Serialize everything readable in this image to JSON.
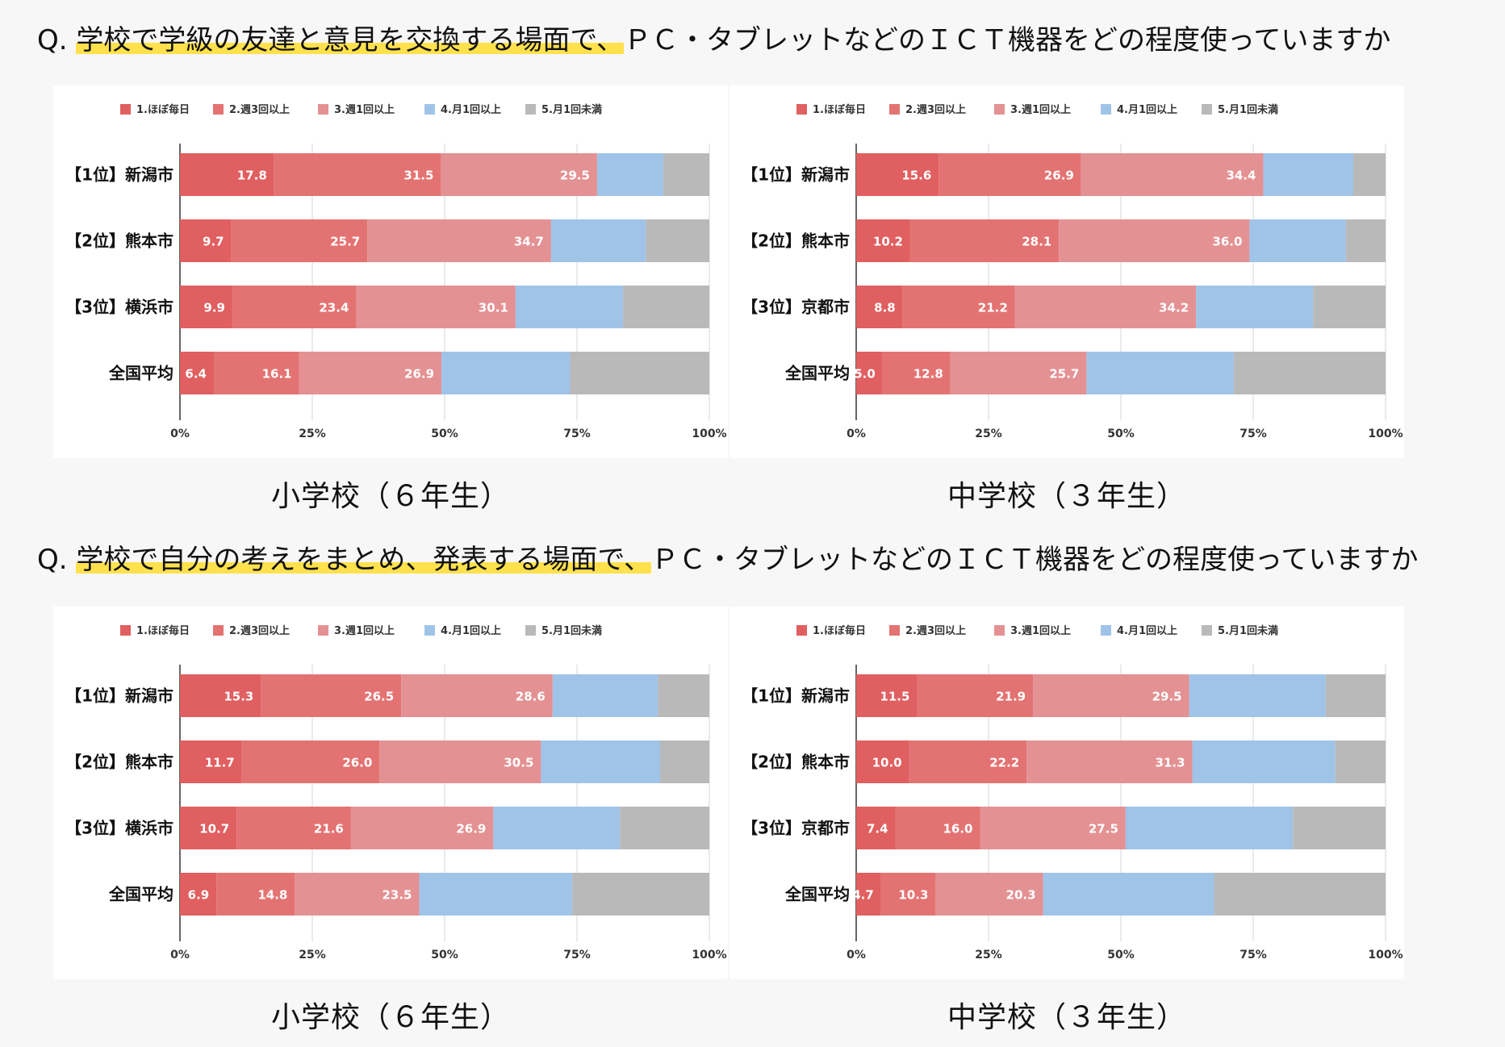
{
  "legend": [
    {
      "label": "1.ほぼ毎日",
      "color": "#e05f60"
    },
    {
      "label": "2.週3回以上",
      "color": "#e37372"
    },
    {
      "label": "3.週1回以上",
      "color": "#e49193"
    },
    {
      "label": "4.月1回以上",
      "color": "#a0c4e8"
    },
    {
      "label": "5.月1回未満",
      "color": "#b9b9b9"
    }
  ],
  "questions": [
    {
      "prefix": "Q. ",
      "highlight": "学校で学級の友達と意見を交換する場面で、",
      "rest": "ＰＣ・タブレットなどのＩＣＴ機器をどの程度使っていますか"
    },
    {
      "prefix": "Q. ",
      "highlight": "学校で自分の考えをまとめ、発表する場面で、",
      "rest": "ＰＣ・タブレットなどのＩＣＴ機器をどの程度使っていますか"
    }
  ],
  "chart_data": [
    {
      "type": "bar",
      "orientation": "horizontal",
      "stacked": "percent",
      "caption": "小学校（６年生）",
      "question_index": 0,
      "categories": [
        "【1位】新潟市",
        "【2位】熊本市",
        "【3位】横浜市",
        "全国平均"
      ],
      "series": [
        {
          "name": "1.ほぼ毎日",
          "values": [
            17.8,
            9.7,
            9.9,
            6.4
          ]
        },
        {
          "name": "2.週3回以上",
          "values": [
            31.5,
            25.7,
            23.4,
            16.1
          ]
        },
        {
          "name": "3.週1回以上",
          "values": [
            29.5,
            34.7,
            30.1,
            26.9
          ]
        },
        {
          "name": "4.月1回以上",
          "values": [
            12.5,
            17.9,
            20.3,
            24.3
          ]
        },
        {
          "name": "5.月1回未満",
          "values": [
            8.7,
            12.0,
            16.3,
            26.3
          ]
        }
      ],
      "xlim": [
        0,
        100
      ],
      "xticks": [
        "0%",
        "25%",
        "50%",
        "75%",
        "100%"
      ],
      "labeled_series": 3
    },
    {
      "type": "bar",
      "orientation": "horizontal",
      "stacked": "percent",
      "caption": "中学校（３年生）",
      "question_index": 0,
      "categories": [
        "【1位】新潟市",
        "【2位】熊本市",
        "【3位】京都市",
        "全国平均"
      ],
      "series": [
        {
          "name": "1.ほぼ毎日",
          "values": [
            15.6,
            10.2,
            8.8,
            5.0
          ]
        },
        {
          "name": "2.週3回以上",
          "values": [
            26.9,
            28.1,
            21.2,
            12.8
          ]
        },
        {
          "name": "3.週1回以上",
          "values": [
            34.4,
            36.0,
            34.2,
            25.7
          ]
        },
        {
          "name": "4.月1回以上",
          "values": [
            17.0,
            18.2,
            22.1,
            27.8
          ]
        },
        {
          "name": "5.月1回未満",
          "values": [
            6.1,
            7.5,
            13.7,
            28.7
          ]
        }
      ],
      "xlim": [
        0,
        100
      ],
      "xticks": [
        "0%",
        "25%",
        "50%",
        "75%",
        "100%"
      ],
      "labeled_series": 3
    },
    {
      "type": "bar",
      "orientation": "horizontal",
      "stacked": "percent",
      "caption": "小学校（６年生）",
      "question_index": 1,
      "categories": [
        "【1位】新潟市",
        "【2位】熊本市",
        "【3位】横浜市",
        "全国平均"
      ],
      "series": [
        {
          "name": "1.ほぼ毎日",
          "values": [
            15.3,
            11.7,
            10.7,
            6.9
          ]
        },
        {
          "name": "2.週3回以上",
          "values": [
            26.5,
            26.0,
            21.6,
            14.8
          ]
        },
        {
          "name": "3.週1回以上",
          "values": [
            28.6,
            30.5,
            26.9,
            23.5
          ]
        },
        {
          "name": "4.月1回以上",
          "values": [
            19.9,
            22.5,
            23.9,
            28.9
          ]
        },
        {
          "name": "5.月1回未満",
          "values": [
            9.7,
            9.3,
            16.9,
            25.9
          ]
        }
      ],
      "xlim": [
        0,
        100
      ],
      "xticks": [
        "0%",
        "25%",
        "50%",
        "75%",
        "100%"
      ],
      "labeled_series": 3
    },
    {
      "type": "bar",
      "orientation": "horizontal",
      "stacked": "percent",
      "caption": "中学校（３年生）",
      "question_index": 1,
      "categories": [
        "【1位】新潟市",
        "【2位】熊本市",
        "【3位】京都市",
        "全国平均"
      ],
      "series": [
        {
          "name": "1.ほぼ毎日",
          "values": [
            11.5,
            10.0,
            7.4,
            4.7
          ]
        },
        {
          "name": "2.週3回以上",
          "values": [
            21.9,
            22.2,
            16.0,
            10.3
          ]
        },
        {
          "name": "3.週1回以上",
          "values": [
            29.5,
            31.3,
            27.5,
            20.3
          ]
        },
        {
          "name": "4.月1回以上",
          "values": [
            25.8,
            27.0,
            31.6,
            32.3
          ]
        },
        {
          "name": "5.月1回未満",
          "values": [
            11.3,
            9.5,
            17.5,
            32.4
          ]
        }
      ],
      "xlim": [
        0,
        100
      ],
      "xticks": [
        "0%",
        "25%",
        "50%",
        "75%",
        "100%"
      ],
      "labeled_series": 3
    }
  ]
}
